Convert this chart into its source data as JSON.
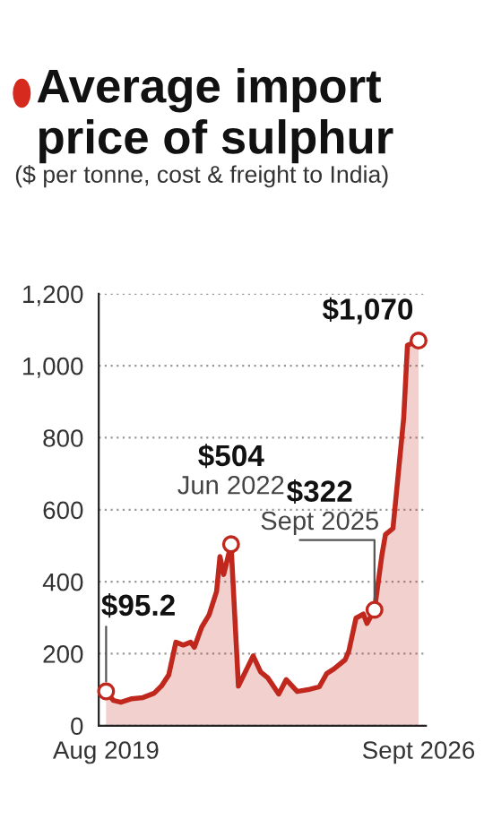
{
  "chart_data": {
    "type": "area",
    "title": "Average import price of sulphur",
    "subtitle": "($ per tonne, cost & freight to India)",
    "x": [
      "2019-08",
      "2019-10",
      "2019-12",
      "2020-03",
      "2020-06",
      "2020-09",
      "2020-11",
      "2021-01",
      "2021-03",
      "2021-05",
      "2021-07",
      "2021-08",
      "2021-10",
      "2021-12",
      "2022-02",
      "2022-03",
      "2022-04",
      "2022-06",
      "2022-08",
      "2022-12",
      "2023-02",
      "2023-04",
      "2023-07",
      "2023-09",
      "2023-12",
      "2024-03",
      "2024-06",
      "2024-08",
      "2024-10",
      "2025-01",
      "2025-02",
      "2025-04",
      "2025-06",
      "2025-07",
      "2025-09",
      "2025-11",
      "2025-12",
      "2026-02",
      "2026-05",
      "2026-06",
      "2026-09"
    ],
    "series": [
      {
        "color": "#c0281e",
        "values": [
          95.2,
          70,
          65,
          75,
          78,
          90,
          110,
          141,
          232,
          224,
          232,
          218,
          274,
          308,
          373,
          470,
          420,
          504,
          110,
          194,
          149,
          133,
          88,
          128,
          95,
          100,
          108,
          145,
          158,
          183,
          208,
          299,
          310,
          284,
          322,
          473,
          531,
          548,
          855,
          1057,
          1070
        ]
      }
    ],
    "xlim": [
      "2019-06",
      "2026-11"
    ],
    "xticks": [
      {
        "value": "2019-08",
        "label": "Aug 2019"
      },
      {
        "value": "2026-09",
        "label": "Sept 2026"
      }
    ],
    "ylim": [
      0,
      1200
    ],
    "yticks": [
      0,
      200,
      400,
      600,
      800,
      {
        "value": 1000,
        "label": "1,000"
      },
      {
        "value": 1200,
        "label": "1,200"
      }
    ],
    "grid": "y",
    "annotations": [
      {
        "text": "$95.2",
        "x": "2019-08",
        "y": 95.2
      },
      {
        "text": "$504\nJun 2022",
        "x": "2022-06",
        "y": 504
      },
      {
        "text": "$322\nSept 2025",
        "x": "2025-09",
        "y": 322
      },
      {
        "text": "$1,070",
        "x": "2026-09",
        "y": 1070
      }
    ]
  }
}
